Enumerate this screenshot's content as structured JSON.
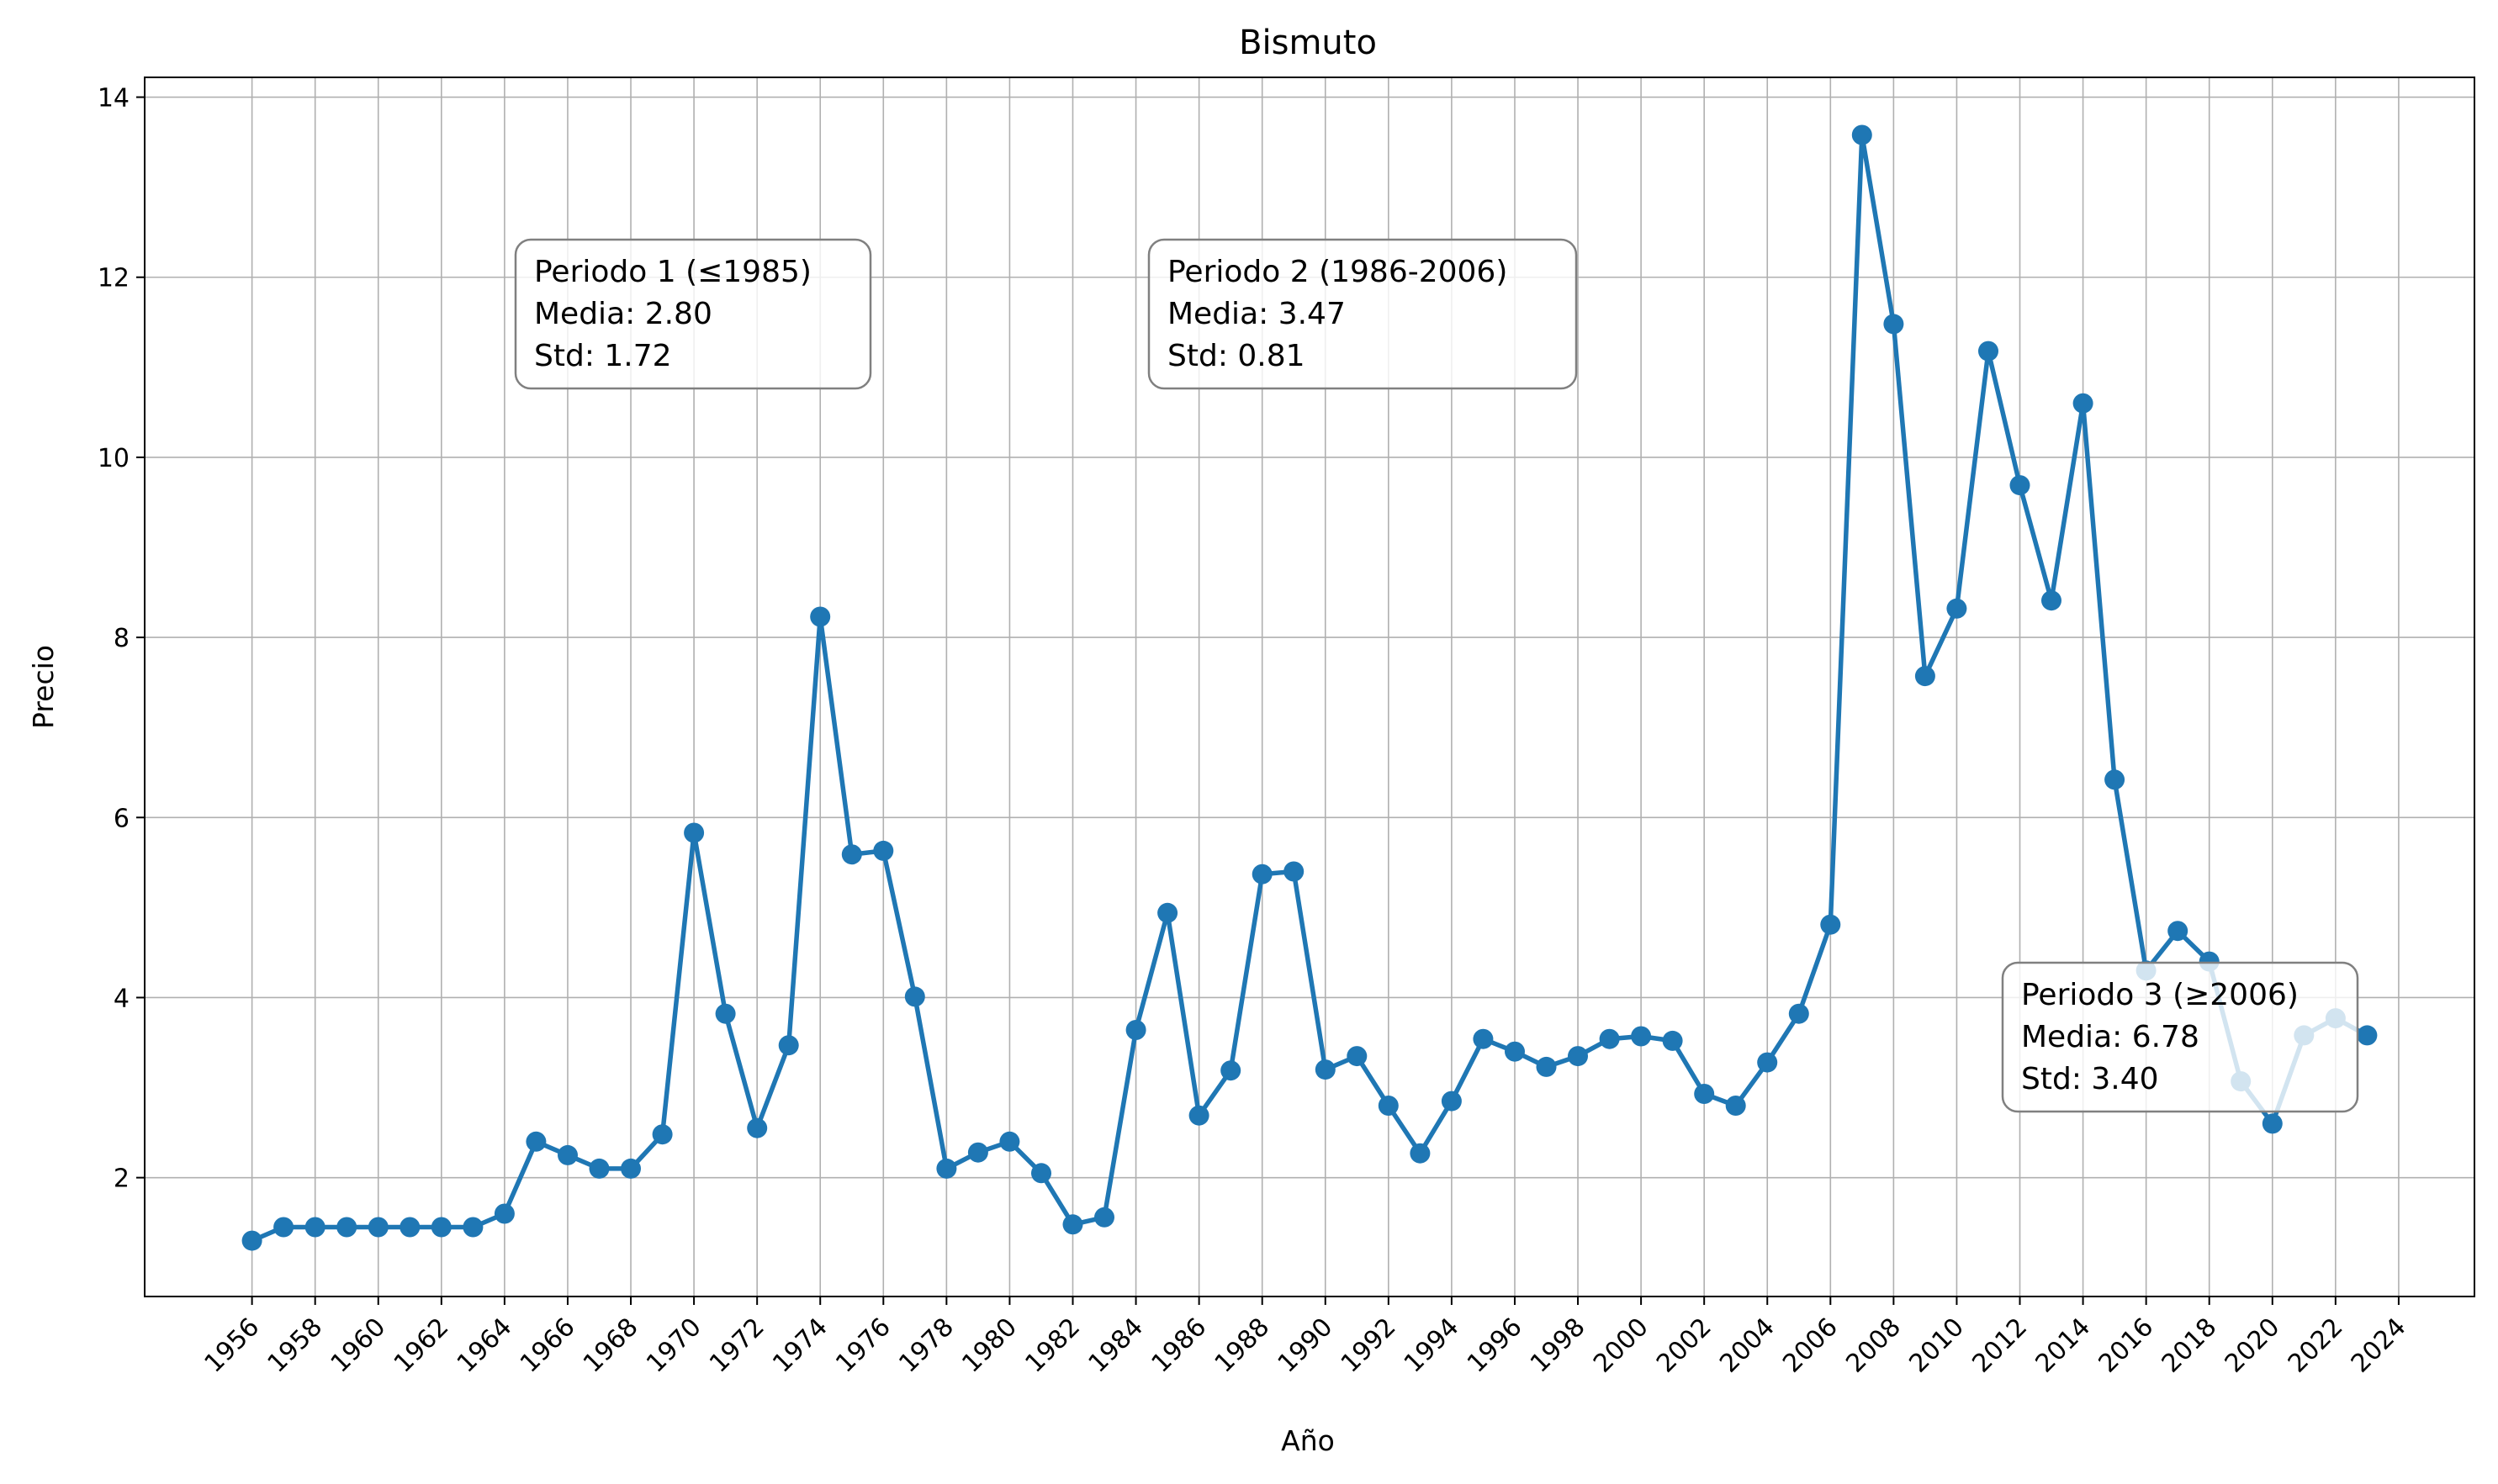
{
  "chart_data": {
    "type": "line",
    "title": "Bismuto",
    "xlabel": "Año",
    "ylabel": "Precio",
    "xlim": [
      1952.6,
      2026.4
    ],
    "ylim": [
      0.68,
      14.22
    ],
    "grid": true,
    "x_ticks": [
      "1956",
      "1958",
      "1960",
      "1962",
      "1964",
      "1966",
      "1968",
      "1970",
      "1972",
      "1974",
      "1976",
      "1978",
      "1980",
      "1982",
      "1984",
      "1986",
      "1988",
      "1990",
      "1992",
      "1994",
      "1996",
      "1998",
      "2000",
      "2002",
      "2004",
      "2006",
      "2008",
      "2010",
      "2012",
      "2014",
      "2016",
      "2018",
      "2020",
      "2022",
      "2024"
    ],
    "y_ticks": [
      "2",
      "4",
      "6",
      "8",
      "10",
      "12",
      "14"
    ],
    "series_color": "#1f77b4",
    "series": [
      {
        "x": [
          1956,
          1957,
          1958,
          1959,
          1960,
          1961,
          1962,
          1963,
          1964,
          1965,
          1966,
          1967,
          1968,
          1969,
          1970,
          1971,
          1972,
          1973,
          1974,
          1975,
          1976,
          1977,
          1978,
          1979,
          1980,
          1981,
          1982,
          1983,
          1984,
          1985,
          1986,
          1987,
          1988,
          1989,
          1990,
          1991,
          1992,
          1993,
          1994,
          1995,
          1996,
          1997,
          1998,
          1999,
          2000,
          2001,
          2002,
          2003,
          2004,
          2005,
          2006,
          2007,
          2008,
          2009,
          2010,
          2011,
          2012,
          2013,
          2014,
          2015,
          2016,
          2017,
          2018,
          2019,
          2020,
          2021,
          2022,
          2023
        ],
        "values": [
          1.3,
          1.45,
          1.45,
          1.45,
          1.45,
          1.45,
          1.45,
          1.45,
          1.6,
          2.4,
          2.25,
          2.1,
          2.1,
          2.48,
          5.83,
          3.82,
          2.55,
          3.47,
          8.23,
          5.59,
          5.63,
          4.01,
          2.1,
          2.28,
          2.4,
          2.05,
          1.48,
          1.56,
          3.64,
          4.94,
          2.69,
          3.19,
          5.37,
          5.4,
          3.2,
          3.35,
          2.8,
          2.27,
          2.85,
          3.54,
          3.4,
          3.23,
          3.35,
          3.54,
          3.57,
          3.52,
          2.93,
          2.8,
          3.28,
          3.82,
          4.81,
          13.58,
          11.48,
          7.57,
          8.32,
          11.18,
          9.69,
          8.41,
          10.6,
          6.42,
          4.3,
          4.74,
          4.4,
          3.07,
          2.6,
          3.58,
          3.77,
          3.58
        ]
      }
    ],
    "annotations": [
      {
        "lines": [
          "Periodo 1 (≤1985)",
          "Media: 2.80",
          "Std: 1.72"
        ]
      },
      {
        "lines": [
          "Periodo 2 (1986-2006)",
          "Media: 3.47",
          "Std: 0.81"
        ]
      },
      {
        "lines": [
          "Periodo 3 (≥2006)",
          "Media: 6.78",
          "Std: 3.40"
        ]
      }
    ]
  }
}
